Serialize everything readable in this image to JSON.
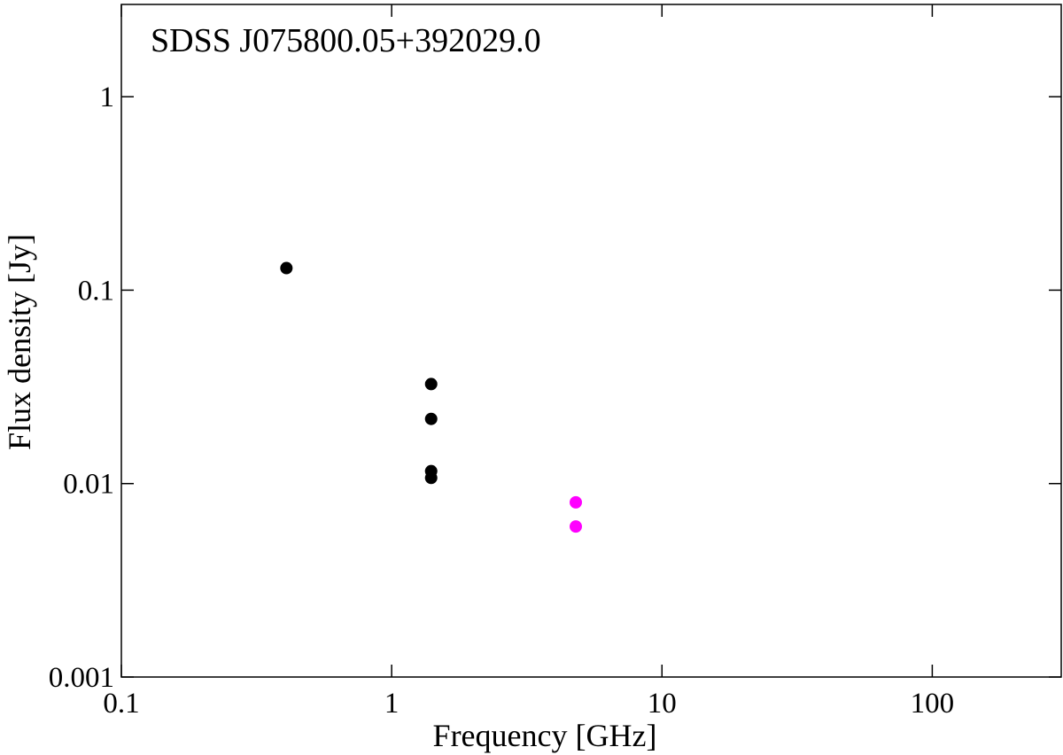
{
  "chart_data": {
    "type": "scatter",
    "title": "SDSS J075800.05+392029.0",
    "x_label": "Frequency [GHz]",
    "y_label": "Flux density [Jy]",
    "log_x": true,
    "log_y": true,
    "xlim": [
      0.1,
      300
    ],
    "ylim": [
      0.001,
      3
    ],
    "xticks": [
      0.1,
      1,
      10,
      100
    ],
    "yticks": [
      0.001,
      0.01,
      0.1,
      1
    ],
    "series": [
      {
        "color": "#000000",
        "x": [
          0.408,
          1.4,
          1.4,
          1.4,
          1.4
        ],
        "values": [
          0.13,
          0.0327,
          0.0216,
          0.0116,
          0.0107
        ]
      },
      {
        "color": "#ff00ff",
        "x": [
          4.8,
          4.8
        ],
        "values": [
          0.008,
          0.006
        ]
      }
    ]
  }
}
